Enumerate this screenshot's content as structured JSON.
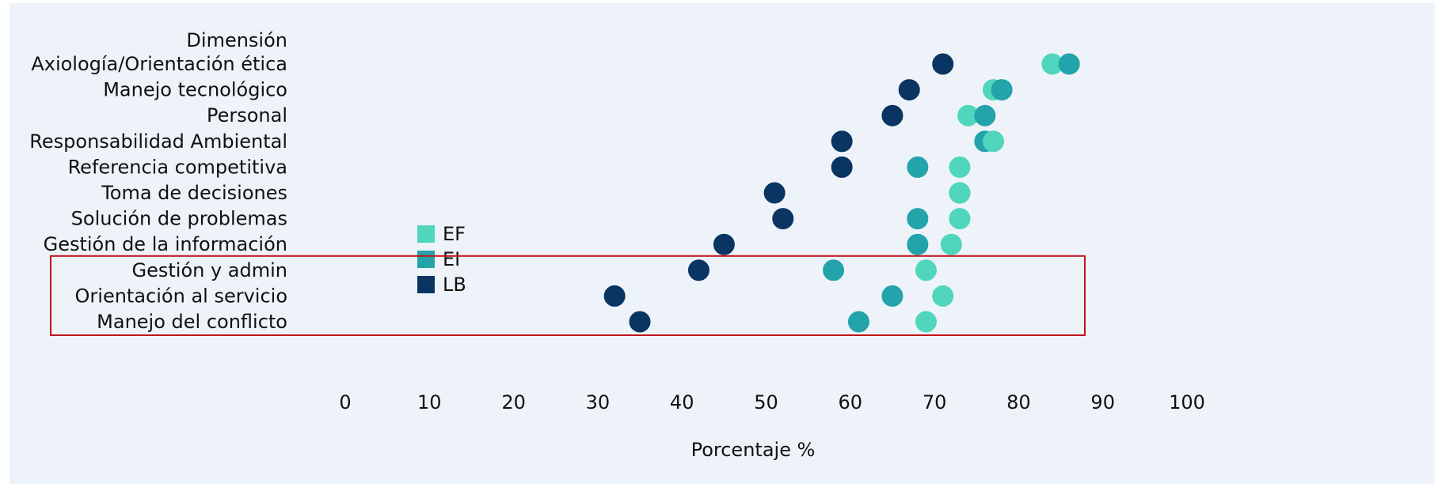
{
  "chart_data": {
    "type": "dumbbell",
    "header_label": "Dimensión",
    "xlabel": "Porcentaje %",
    "xlim": [
      0,
      100
    ],
    "xticks": [
      0,
      10,
      20,
      30,
      40,
      50,
      60,
      70,
      80,
      90,
      100
    ],
    "grid": false,
    "legend_position": "left-middle",
    "categories": [
      "Axiología/Orientación ética",
      "Manejo tecnológico",
      "Personal",
      "Responsabilidad Ambiental",
      "Referencia competitiva",
      "Toma de decisiones",
      "Solución de problemas",
      "Gestión de la información",
      "Gestión y admin",
      "Orientación al servicio",
      "Manejo del conflicto"
    ],
    "series": [
      {
        "name": "EF",
        "color": "#4fd6bd",
        "values": [
          84,
          77,
          74,
          77,
          73,
          73,
          73,
          72,
          69,
          71,
          69
        ]
      },
      {
        "name": "EI",
        "color": "#23a3aa",
        "values": [
          86,
          78,
          76,
          76,
          68,
          73,
          68,
          68,
          58,
          65,
          61
        ]
      },
      {
        "name": "LB",
        "color": "#0a3563",
        "values": [
          71,
          67,
          65,
          59,
          59,
          51,
          52,
          45,
          42,
          32,
          35
        ]
      }
    ],
    "highlight_box_rows": [
      "Gestión y admin",
      "Orientación al servicio",
      "Manejo del conflicto"
    ],
    "highlight_color": "#c0141b"
  }
}
